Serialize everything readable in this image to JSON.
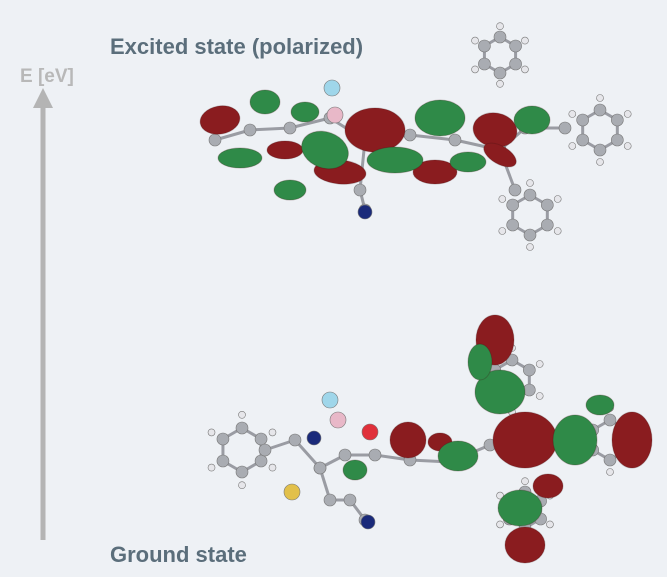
{
  "labels": {
    "excited_state": "Excited state (polarized)",
    "energy_axis": "E [eV]",
    "ground_state": "Ground state"
  }
}
